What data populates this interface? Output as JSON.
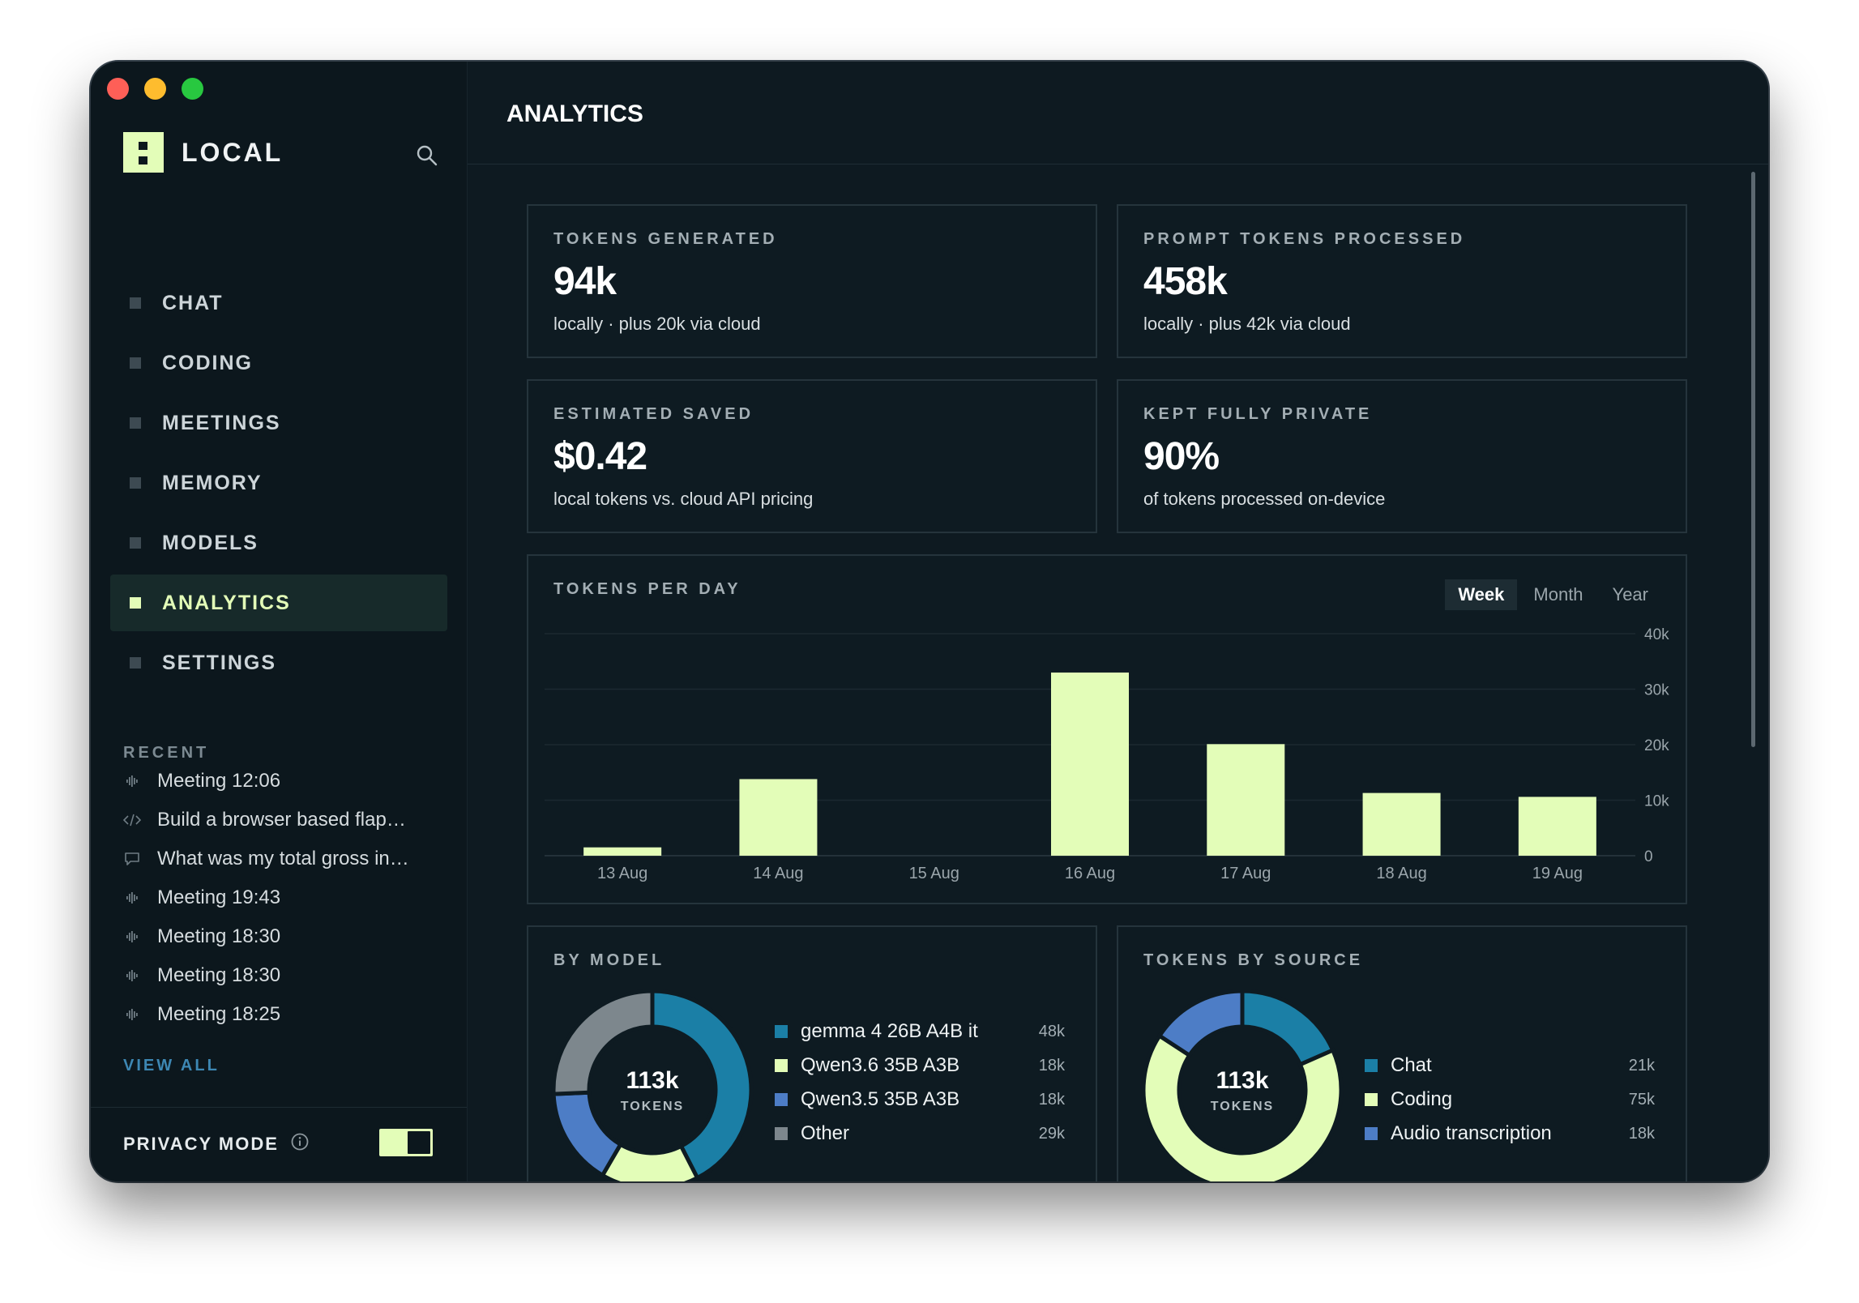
{
  "brand": {
    "name": "LOCAL"
  },
  "nav": [
    {
      "label": "CHAT",
      "active": false
    },
    {
      "label": "CODING",
      "active": false
    },
    {
      "label": "MEETINGS",
      "active": false
    },
    {
      "label": "MEMORY",
      "active": false
    },
    {
      "label": "MODELS",
      "active": false
    },
    {
      "label": "ANALYTICS",
      "active": true
    },
    {
      "label": "SETTINGS",
      "active": false
    }
  ],
  "recent": {
    "heading": "RECENT",
    "items": [
      {
        "icon": "waveform-icon",
        "label": "Meeting 12:06"
      },
      {
        "icon": "code-icon",
        "label": "Build a browser based flap…"
      },
      {
        "icon": "chat-bubble-icon",
        "label": "What was my total gross in…"
      },
      {
        "icon": "waveform-icon",
        "label": "Meeting 19:43"
      },
      {
        "icon": "waveform-icon",
        "label": "Meeting 18:30"
      },
      {
        "icon": "waveform-icon",
        "label": "Meeting 18:30"
      },
      {
        "icon": "waveform-icon",
        "label": "Meeting 18:25"
      }
    ],
    "view_all": "VIEW ALL"
  },
  "privacy": {
    "label": "PRIVACY MODE",
    "enabled": true
  },
  "page": {
    "title": "ANALYTICS"
  },
  "stats": {
    "tokens_generated": {
      "label": "TOKENS GENERATED",
      "value": "94k",
      "sub": "locally · plus 20k via cloud"
    },
    "prompt_tokens": {
      "label": "PROMPT TOKENS PROCESSED",
      "value": "458k",
      "sub": "locally · plus 42k via cloud"
    },
    "estimated_saved": {
      "label": "ESTIMATED SAVED",
      "value": "$0.42",
      "sub": "local tokens vs. cloud API pricing"
    },
    "kept_private": {
      "label": "KEPT FULLY PRIVATE",
      "value": "90%",
      "sub": "of tokens processed on-device"
    }
  },
  "tokens_per_day": {
    "label": "TOKENS PER DAY",
    "tabs": [
      "Week",
      "Month",
      "Year"
    ],
    "active_tab": "Week"
  },
  "by_model": {
    "label": "BY MODEL",
    "center_value": "113k",
    "center_label": "TOKENS"
  },
  "by_source": {
    "label": "TOKENS BY SOURCE",
    "center_value": "113k",
    "center_label": "TOKENS"
  },
  "colors": {
    "accent": "#e3fdb8",
    "teal": "#1b7fa6",
    "blue": "#4d7dc6",
    "gray": "#7d878d",
    "background": "#0e1a21"
  },
  "chart_data": [
    {
      "type": "bar",
      "title": "TOKENS PER DAY",
      "categories": [
        "13 Aug",
        "14 Aug",
        "15 Aug",
        "16 Aug",
        "17 Aug",
        "18 Aug",
        "19 Aug"
      ],
      "values": [
        1500,
        13800,
        0,
        33000,
        20100,
        11300,
        10600
      ],
      "ylim": [
        0,
        40000
      ],
      "yticks": [
        {
          "value": 40000,
          "label": "40k"
        },
        {
          "value": 30000,
          "label": "30k"
        },
        {
          "value": 20000,
          "label": "20k"
        },
        {
          "value": 10000,
          "label": "10k"
        },
        {
          "value": 0,
          "label": "0"
        }
      ],
      "grid": true
    },
    {
      "type": "pie",
      "title": "BY MODEL",
      "series": [
        {
          "name": "gemma 4 26B A4B it",
          "value": 48,
          "display": "48k",
          "color": "#1b7fa6"
        },
        {
          "name": "Qwen3.6 35B A3B",
          "value": 18,
          "display": "18k",
          "color": "#e3fdb8"
        },
        {
          "name": "Qwen3.5 35B A3B",
          "value": 18,
          "display": "18k",
          "color": "#4d7dc6"
        },
        {
          "name": "Other",
          "value": 29,
          "display": "29k",
          "color": "#7d878d"
        }
      ]
    },
    {
      "type": "pie",
      "title": "TOKENS BY SOURCE",
      "series": [
        {
          "name": "Chat",
          "value": 21,
          "display": "21k",
          "color": "#1b7fa6"
        },
        {
          "name": "Coding",
          "value": 75,
          "display": "75k",
          "color": "#e3fdb8"
        },
        {
          "name": "Audio transcription",
          "value": 18,
          "display": "18k",
          "color": "#4d7dc6"
        }
      ]
    }
  ]
}
